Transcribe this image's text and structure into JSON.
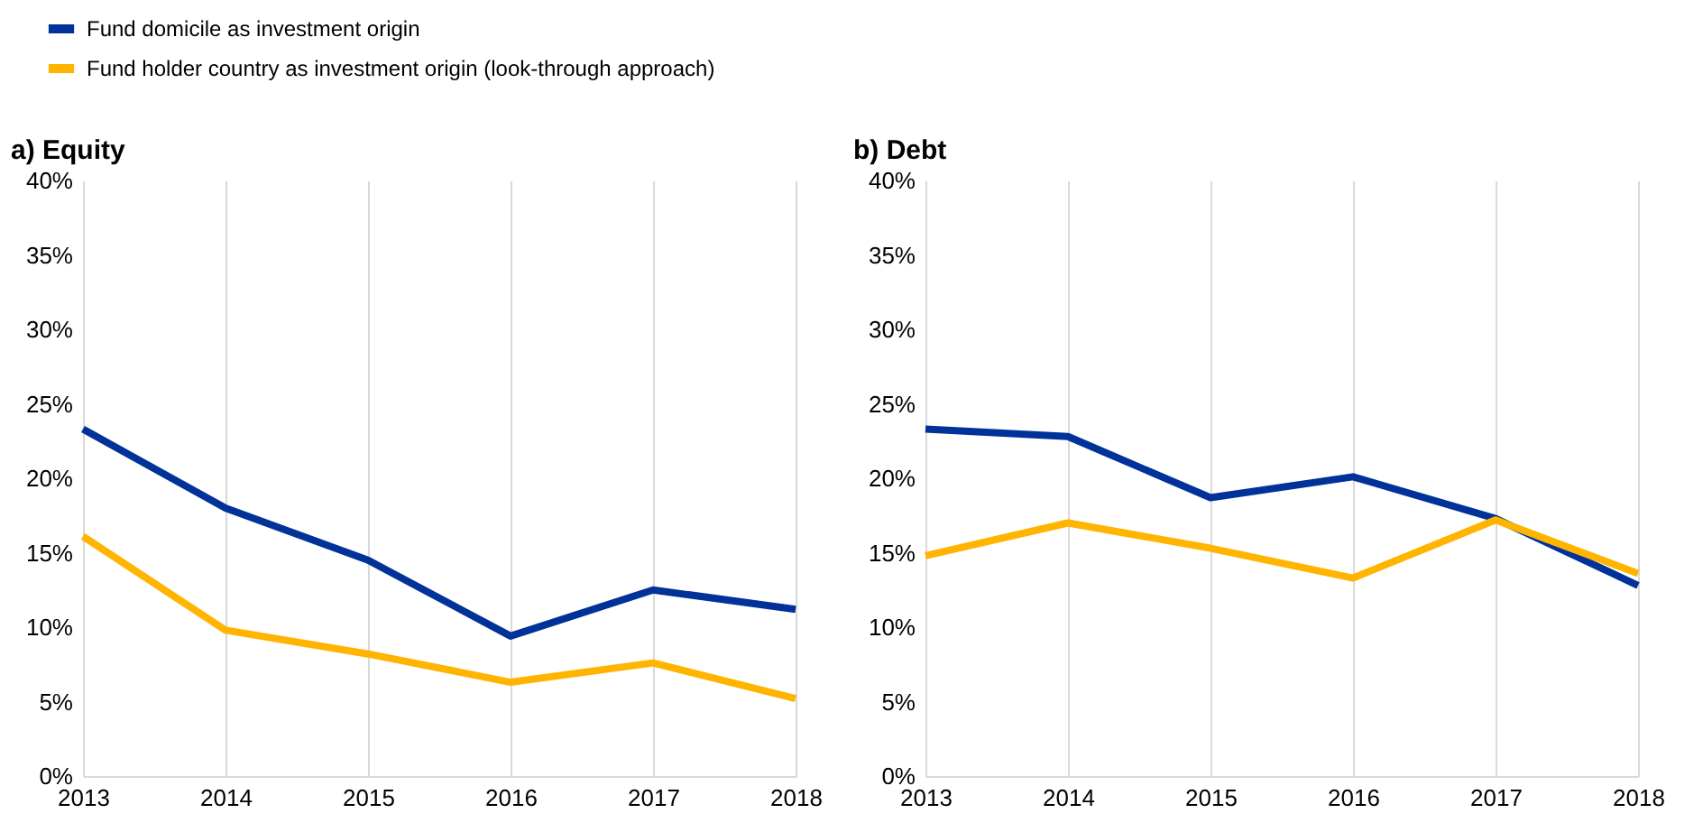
{
  "chart_data": [
    {
      "type": "line",
      "title": "a) Equity",
      "x": [
        2013,
        2014,
        2015,
        2016,
        2017,
        2018
      ],
      "xlim": [
        2013,
        2018
      ],
      "xticks": [
        2013,
        2014,
        2015,
        2016,
        2017,
        2018
      ],
      "ylim": [
        0,
        40
      ],
      "yticks": [
        {
          "value": 0,
          "label": "0%"
        },
        {
          "value": 5,
          "label": "5%"
        },
        {
          "value": 10,
          "label": "10%"
        },
        {
          "value": 15,
          "label": "15%"
        },
        {
          "value": 20,
          "label": "20%"
        },
        {
          "value": 25,
          "label": "25%"
        },
        {
          "value": 30,
          "label": "30%"
        },
        {
          "value": 35,
          "label": "35%"
        },
        {
          "value": 40,
          "label": "40%"
        }
      ],
      "grid": "x",
      "legend": "top",
      "marker": "none",
      "line_style": "solid",
      "series": [
        {
          "name": "Fund domicile as investment origin",
          "color": "#003299",
          "values": [
            23.3,
            18.0,
            14.5,
            9.4,
            12.5,
            11.2
          ]
        },
        {
          "name": "Fund holder country as investment origin (look-through approach)",
          "color": "#ffb400",
          "values": [
            16.1,
            9.8,
            8.2,
            6.3,
            7.6,
            5.2
          ]
        }
      ]
    },
    {
      "type": "line",
      "title": "b) Debt",
      "x": [
        2013,
        2014,
        2015,
        2016,
        2017,
        2018
      ],
      "xlim": [
        2013,
        2018
      ],
      "xticks": [
        2013,
        2014,
        2015,
        2016,
        2017,
        2018
      ],
      "ylim": [
        0,
        40
      ],
      "yticks": [
        {
          "value": 0,
          "label": "0%"
        },
        {
          "value": 5,
          "label": "5%"
        },
        {
          "value": 10,
          "label": "10%"
        },
        {
          "value": 15,
          "label": "15%"
        },
        {
          "value": 20,
          "label": "20%"
        },
        {
          "value": 25,
          "label": "25%"
        },
        {
          "value": 30,
          "label": "30%"
        },
        {
          "value": 35,
          "label": "35%"
        },
        {
          "value": 40,
          "label": "40%"
        }
      ],
      "grid": "x",
      "marker": "none",
      "line_style": "solid",
      "series": [
        {
          "color": "#003299",
          "values": [
            23.3,
            22.8,
            18.7,
            20.1,
            17.3,
            12.8
          ]
        },
        {
          "color": "#ffb400",
          "values": [
            14.8,
            17.0,
            15.3,
            13.3,
            17.2,
            13.6
          ]
        }
      ]
    }
  ]
}
